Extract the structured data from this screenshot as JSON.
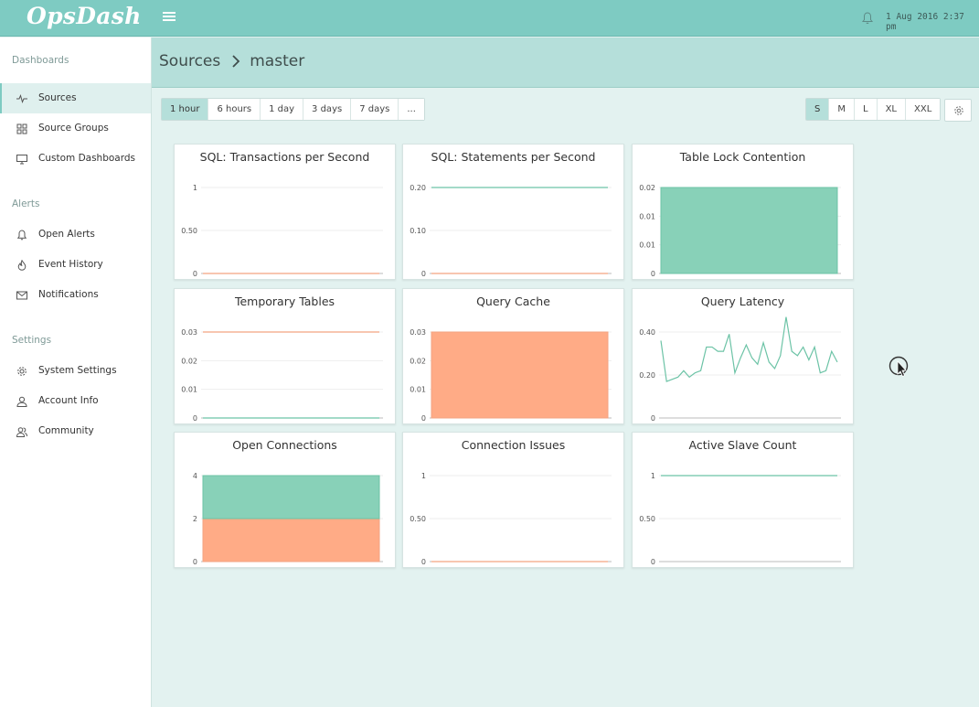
{
  "app": {
    "logo": "OpsDash",
    "datetime": "1 Aug 2016 2:37 pm"
  },
  "sidebar": {
    "sections": [
      {
        "title": "Dashboards",
        "items": [
          {
            "label": "Sources",
            "icon": "pulse-icon",
            "active": true
          },
          {
            "label": "Source Groups",
            "icon": "grid-icon"
          },
          {
            "label": "Custom Dashboards",
            "icon": "monitor-icon"
          }
        ]
      },
      {
        "title": "Alerts",
        "items": [
          {
            "label": "Open Alerts",
            "icon": "bell-icon"
          },
          {
            "label": "Event History",
            "icon": "fire-icon"
          },
          {
            "label": "Notifications",
            "icon": "envelope-icon"
          }
        ]
      },
      {
        "title": "Settings",
        "items": [
          {
            "label": "System Settings",
            "icon": "gear-icon"
          },
          {
            "label": "Account Info",
            "icon": "user-icon"
          },
          {
            "label": "Community",
            "icon": "users-icon"
          }
        ]
      }
    ]
  },
  "breadcrumb": {
    "parent": "Sources",
    "current": "master"
  },
  "time_ranges": {
    "options": [
      "1 hour",
      "6 hours",
      "1 day",
      "3 days",
      "7 days",
      "..."
    ],
    "selected": "1 hour"
  },
  "sizes": {
    "options": [
      "S",
      "M",
      "L",
      "XL",
      "XXL"
    ],
    "selected": "S"
  },
  "colors": {
    "teal": "#7ecbc2",
    "green": "#88d1b8",
    "orange": "#ffab86",
    "line_green": "#6cc3a6",
    "line_orange": "#f3a381"
  },
  "chart_data": [
    {
      "title": "SQL: Transactions per Second",
      "type": "line",
      "yticks": [
        "1",
        "0.50",
        "0"
      ],
      "ylim": [
        0,
        1
      ],
      "series": [
        {
          "color": "orange",
          "values": [
            0,
            0
          ]
        }
      ]
    },
    {
      "title": "SQL: Statements per Second",
      "type": "line",
      "yticks": [
        "0.20",
        "0.10",
        "0"
      ],
      "ylim": [
        0,
        0.2
      ],
      "series": [
        {
          "color": "green",
          "values": [
            0.2,
            0.2
          ]
        },
        {
          "color": "orange",
          "values": [
            0,
            0
          ]
        }
      ]
    },
    {
      "title": "Table Lock Contention",
      "type": "area",
      "yticks": [
        "0.02",
        "0.01",
        "0.01",
        "0"
      ],
      "ylim": [
        0,
        0.02
      ],
      "series": [
        {
          "color": "green",
          "values": [
            0.02,
            0.02
          ]
        }
      ]
    },
    {
      "title": "Temporary Tables",
      "type": "line",
      "yticks": [
        "0.03",
        "0.02",
        "0.01",
        "0"
      ],
      "ylim": [
        0,
        0.033
      ],
      "series": [
        {
          "color": "orange",
          "values": [
            0.033,
            0.033
          ]
        },
        {
          "color": "green",
          "values": [
            0,
            0
          ]
        }
      ]
    },
    {
      "title": "Query Cache",
      "type": "area",
      "yticks": [
        "0.03",
        "0.02",
        "0.01",
        "0"
      ],
      "ylim": [
        0,
        0.033
      ],
      "series": [
        {
          "color": "orange",
          "values": [
            0.033,
            0.033
          ]
        }
      ]
    },
    {
      "title": "Query Latency",
      "type": "line",
      "yticks": [
        "0.40",
        "0.20",
        "0"
      ],
      "ylim": [
        0,
        0.4
      ],
      "series": [
        {
          "color": "green",
          "values": [
            0.36,
            0.17,
            0.18,
            0.19,
            0.22,
            0.19,
            0.21,
            0.22,
            0.33,
            0.33,
            0.31,
            0.31,
            0.39,
            0.21,
            0.28,
            0.34,
            0.28,
            0.25,
            0.35,
            0.26,
            0.23,
            0.29,
            0.47,
            0.31,
            0.29,
            0.33,
            0.27,
            0.33,
            0.21,
            0.22,
            0.31,
            0.26
          ]
        }
      ]
    },
    {
      "title": "Open Connections",
      "type": "stacked-area",
      "yticks": [
        "4",
        "2",
        "0"
      ],
      "ylim": [
        0,
        4
      ],
      "series": [
        {
          "color": "orange",
          "values": [
            2,
            2
          ]
        },
        {
          "color": "green",
          "values": [
            2,
            2
          ]
        }
      ]
    },
    {
      "title": "Connection Issues",
      "type": "line",
      "yticks": [
        "1",
        "0.50",
        "0"
      ],
      "ylim": [
        0,
        1
      ],
      "series": [
        {
          "color": "orange",
          "values": [
            0,
            0
          ]
        }
      ]
    },
    {
      "title": "Active Slave Count",
      "type": "line",
      "yticks": [
        "1",
        "0.50",
        "0"
      ],
      "ylim": [
        0,
        1
      ],
      "series": [
        {
          "color": "green",
          "values": [
            1,
            1
          ]
        }
      ]
    }
  ]
}
